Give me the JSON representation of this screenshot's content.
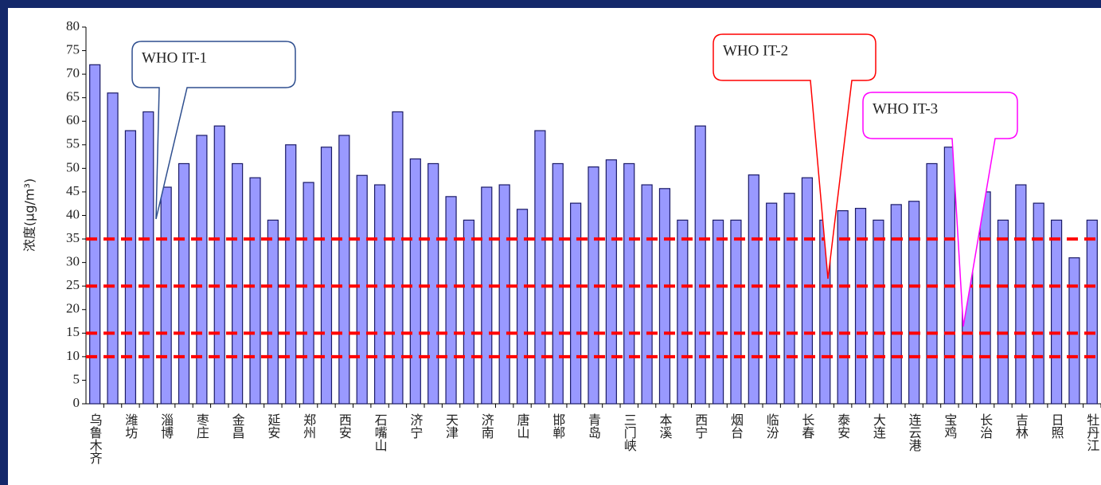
{
  "chart_data": {
    "type": "bar",
    "y_label": "浓度(μg/m³)",
    "categories": [
      "乌鲁木齐",
      null,
      "潍坊",
      null,
      "淄博",
      null,
      "枣庄",
      null,
      "金昌",
      null,
      "延安",
      null,
      "郑州",
      null,
      "西安",
      null,
      "石嘴山",
      null,
      "济宁",
      null,
      "天津",
      null,
      "济南",
      null,
      "唐山",
      null,
      "邯郸",
      null,
      "青岛",
      null,
      "三门峡",
      null,
      "本溪",
      null,
      "西宁",
      null,
      "烟台",
      null,
      "临汾",
      null,
      "长春",
      null,
      "泰安",
      null,
      "大连",
      null,
      "连云港",
      null,
      "宝鸡",
      null,
      "长治",
      null,
      "吉林",
      null,
      "日照",
      null,
      "牡丹江"
    ],
    "values": [
      72,
      66,
      58,
      62,
      46,
      51,
      57,
      59,
      51,
      48,
      39,
      55,
      47,
      54.5,
      57,
      48.5,
      46.5,
      62,
      52,
      51,
      44,
      39,
      46,
      46.5,
      41.3,
      58,
      51,
      42.6,
      50.3,
      51.8,
      51,
      46.5,
      45.7,
      39,
      59,
      39,
      39,
      48.6,
      42.6,
      44.7,
      48,
      39,
      41,
      41.5,
      39,
      42.3,
      43,
      51,
      54.5,
      39,
      45,
      39,
      46.5,
      42.6,
      39,
      31,
      39
    ],
    "color": "#9999ff",
    "ylim": [
      0,
      80
    ],
    "yticks": [
      0,
      5,
      10,
      15,
      20,
      25,
      30,
      35,
      40,
      45,
      50,
      55,
      60,
      65,
      70,
      75,
      80
    ],
    "reference_lines": [
      35,
      25,
      15,
      10
    ],
    "reference_color": "#ff0000",
    "annotations": [
      {
        "text": "WHO IT-1",
        "color": "#2f4f8f"
      },
      {
        "text": "WHO IT-2",
        "color": "#ff0000"
      },
      {
        "text": "WHO IT-3",
        "color": "#ff00ff"
      }
    ]
  }
}
